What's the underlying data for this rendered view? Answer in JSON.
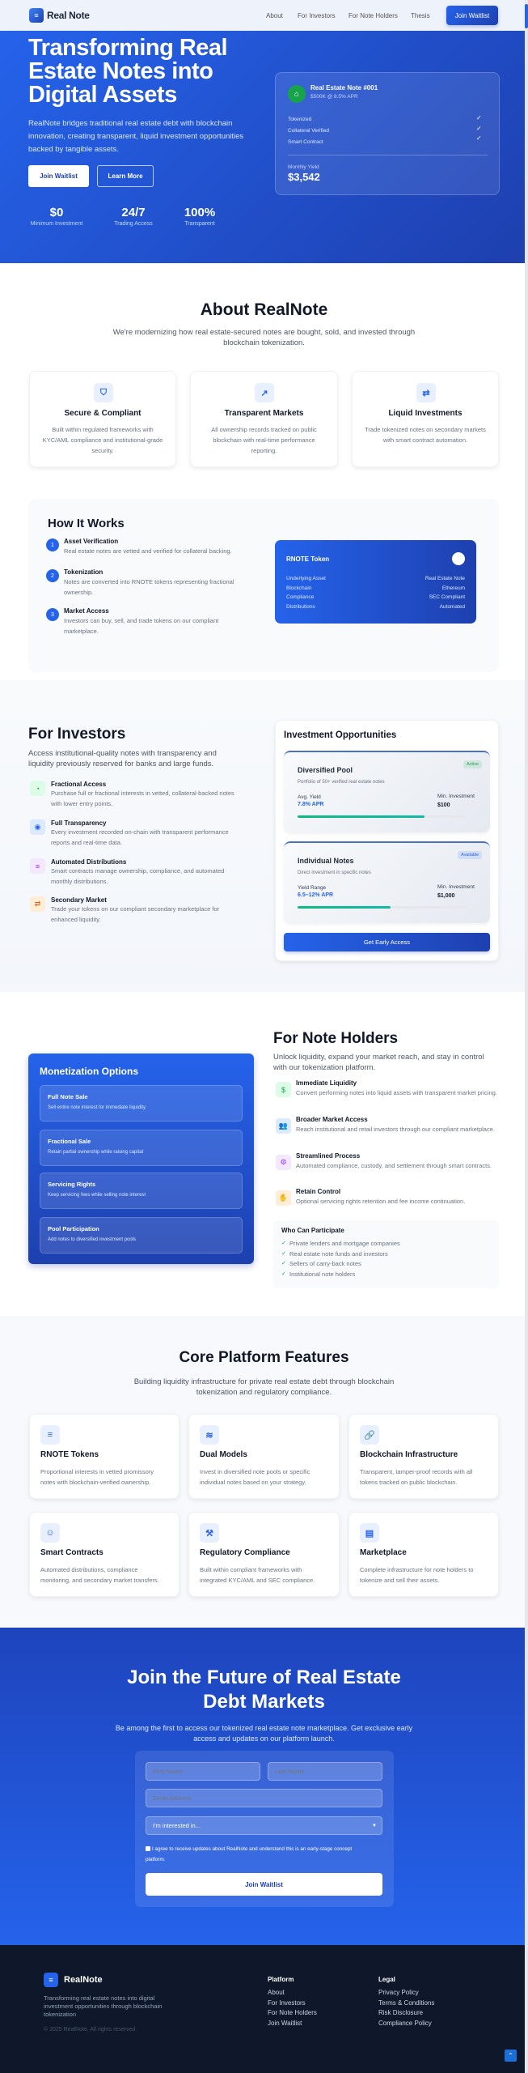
{
  "nav": {
    "brand": "Real Note",
    "links": [
      "About",
      "For Investors",
      "For Note Holders",
      "Thesis"
    ],
    "cta": "Join Waitlist"
  },
  "hero": {
    "title": "Transforming Real Estate Notes into Digital Assets",
    "description": "RealNote bridges traditional real estate debt with blockchain innovation, creating transparent, liquid investment opportunities backed by tangible assets.",
    "primary_button": "Join Waitlist",
    "secondary_button": "Learn More",
    "stats": [
      {
        "value": "$0",
        "label": "Minimum Investment"
      },
      {
        "value": "24/7",
        "label": "Trading Access"
      },
      {
        "value": "100%",
        "label": "Transparent"
      }
    ],
    "note_card": {
      "title": "Real Estate Note #001",
      "subtitle": "$500K @ 8.5% APR",
      "checks": [
        "Tokenized",
        "Collateral Verified",
        "Smart Contract"
      ],
      "yield_label": "Monthly Yield",
      "yield_value": "$3,542"
    }
  },
  "about": {
    "title": "About RealNote",
    "subtitle": "We're modernizing how real estate-secured notes are bought, sold, and invested through blockchain tokenization.",
    "cards": [
      {
        "icon": "shield-icon",
        "title": "Secure & Compliant",
        "desc": "Built within regulated frameworks with KYC/AML compliance and institutional-grade security."
      },
      {
        "icon": "chart-line-icon",
        "title": "Transparent Markets",
        "desc": "All ownership records tracked on public blockchain with real-time performance reporting."
      },
      {
        "icon": "exchange-icon",
        "title": "Liquid Investments",
        "desc": "Trade tokenized notes on secondary markets with smart contract automation."
      }
    ]
  },
  "how": {
    "title": "How It Works",
    "steps": [
      {
        "n": "1",
        "title": "Asset Verification",
        "desc": "Real estate notes are vetted and verified for collateral backing."
      },
      {
        "n": "2",
        "title": "Tokenization",
        "desc": "Notes are converted into RNOTE tokens representing fractional ownership."
      },
      {
        "n": "3",
        "title": "Market Access",
        "desc": "Investors can buy, sell, and trade tokens on our compliant marketplace."
      }
    ],
    "token": {
      "title": "RNOTE Token",
      "rows": [
        {
          "k": "Underlying Asset",
          "v": "Real Estate Note"
        },
        {
          "k": "Blockchain",
          "v": "Ethereum"
        },
        {
          "k": "Compliance",
          "v": "SEC Compliant"
        },
        {
          "k": "Distributions",
          "v": "Automated"
        }
      ]
    }
  },
  "investors": {
    "title": "For Investors",
    "desc": "Access institutional-quality notes with transparency and liquidity previously reserved for banks and large funds.",
    "features": [
      {
        "icon": "pie-chart-icon",
        "color": "#16a34a",
        "bg": "#dcfce7",
        "title": "Fractional Access",
        "desc": "Purchase full or fractional interests in vetted, collateral-backed notes with lower entry points."
      },
      {
        "icon": "eye-icon",
        "color": "#2563eb",
        "bg": "#dbeafe",
        "title": "Full Transparency",
        "desc": "Every investment recorded on-chain with transparent performance reports and real-time data."
      },
      {
        "icon": "coins-icon",
        "color": "#9333ea",
        "bg": "#f3e8ff",
        "title": "Automated Distributions",
        "desc": "Smart contracts manage ownership, compliance, and automated monthly distributions."
      },
      {
        "icon": "exchange-icon",
        "color": "#ea580c",
        "bg": "#ffedd5",
        "title": "Secondary Market",
        "desc": "Trade your tokens on our compliant secondary marketplace for enhanced liquidity."
      }
    ],
    "opportunities": {
      "title": "Investment Opportunities",
      "pools": [
        {
          "name": "Diversified Pool",
          "badge": "Active",
          "badge_color": "#16a34a",
          "desc": "Portfolio of 50+ verified real estate notes",
          "yield_label": "Avg. Yield",
          "yield": "7.8% APR",
          "min_label": "Min. Investment",
          "min": "$100",
          "progress": 75
        },
        {
          "name": "Individual Notes",
          "badge": "Available",
          "badge_color": "#2563eb",
          "desc": "Direct investment in specific notes",
          "yield_label": "Yield Range",
          "yield": "6.5–12% APR",
          "min_label": "Min. Investment",
          "min": "$1,000",
          "progress": 55
        }
      ],
      "button": "Get Early Access"
    }
  },
  "holders": {
    "title": "For Note Holders",
    "desc": "Unlock liquidity, expand your market reach, and stay in control with our tokenization platform.",
    "features": [
      {
        "icon": "dollar-icon",
        "color": "#16a34a",
        "bg": "#dcfce7",
        "title": "Immediate Liquidity",
        "desc": "Convert performing notes into liquid assets with transparent market pricing."
      },
      {
        "icon": "users-icon",
        "color": "#2563eb",
        "bg": "#dbeafe",
        "title": "Broader Market Access",
        "desc": "Reach institutional and retail investors through our compliant marketplace."
      },
      {
        "icon": "gears-icon",
        "color": "#9333ea",
        "bg": "#f3e8ff",
        "title": "Streamlined Process",
        "desc": "Automated compliance, custody, and settlement through smart contracts."
      },
      {
        "icon": "hand-holding-icon",
        "color": "#ea580c",
        "bg": "#ffedd5",
        "title": "Retain Control",
        "desc": "Optional servicing rights retention and fee income continuation."
      }
    ],
    "who": {
      "title": "Who Can Participate",
      "items": [
        "Private lenders and mortgage companies",
        "Real estate note funds and investors",
        "Sellers of carry-back notes",
        "Institutional note holders"
      ]
    },
    "monetization": {
      "title": "Monetization Options",
      "options": [
        {
          "title": "Full Note Sale",
          "desc": "Sell entire note interest for immediate liquidity"
        },
        {
          "title": "Fractional Sale",
          "desc": "Retain partial ownership while raising capital"
        },
        {
          "title": "Servicing Rights",
          "desc": "Keep servicing fees while selling note interest"
        },
        {
          "title": "Pool Participation",
          "desc": "Add notes to diversified investment pools"
        }
      ]
    }
  },
  "features": {
    "title": "Core Platform Features",
    "subtitle": "Building liquidity infrastructure for private real estate debt through blockchain tokenization and regulatory compliance.",
    "cards": [
      {
        "icon": "coins-icon",
        "title": "RNOTE Tokens",
        "desc": "Proportional interests in vetted promissory notes with blockchain-verified ownership."
      },
      {
        "icon": "layers-icon",
        "title": "Dual Models",
        "desc": "Invest in diversified note pools or specific individual notes based on your strategy."
      },
      {
        "icon": "link-icon",
        "title": "Blockchain Infrastructure",
        "desc": "Transparent, tamper-proof records with all tokens tracked on public blockchain."
      },
      {
        "icon": "robot-icon",
        "title": "Smart Contracts",
        "desc": "Automated distributions, compliance monitoring, and secondary market transfers."
      },
      {
        "icon": "gavel-icon",
        "title": "Regulatory Compliance",
        "desc": "Built within compliant frameworks with integrated KYC/AML and SEC compliance."
      },
      {
        "icon": "store-icon",
        "title": "Marketplace",
        "desc": "Complete infrastructure for note holders to tokenize and sell their assets."
      }
    ]
  },
  "cta": {
    "title": "Join the Future of Real Estate Debt Markets",
    "desc": "Be among the first to access our tokenized real estate note marketplace. Get exclusive early access and updates on our platform launch.",
    "form": {
      "first_name": "First Name",
      "last_name": "Last Name",
      "email": "Email Address",
      "interest": "I'm interested in...",
      "consent": "I agree to receive updates about RealNote and understand this is an early-stage concept platform.",
      "submit": "Join Waitlist"
    }
  },
  "footer": {
    "brand": "RealNote",
    "desc": "Transforming real estate notes into digital investment opportunities through blockchain tokenization",
    "copyright": "© 2025 RealNote. All rights reserved.",
    "platform": {
      "title": "Platform",
      "links": [
        "About",
        "For Investors",
        "For Note Holders",
        "Join Waitlist"
      ]
    },
    "legal": {
      "title": "Legal",
      "links": [
        "Privacy Policy",
        "Terms & Conditions",
        "Risk Disclosure",
        "Compliance Policy"
      ]
    }
  },
  "colors": {
    "primary": "#2563eb",
    "primary_dark": "#1e40af",
    "footer_bg": "#0f172a",
    "accent_green": "#10b981"
  }
}
